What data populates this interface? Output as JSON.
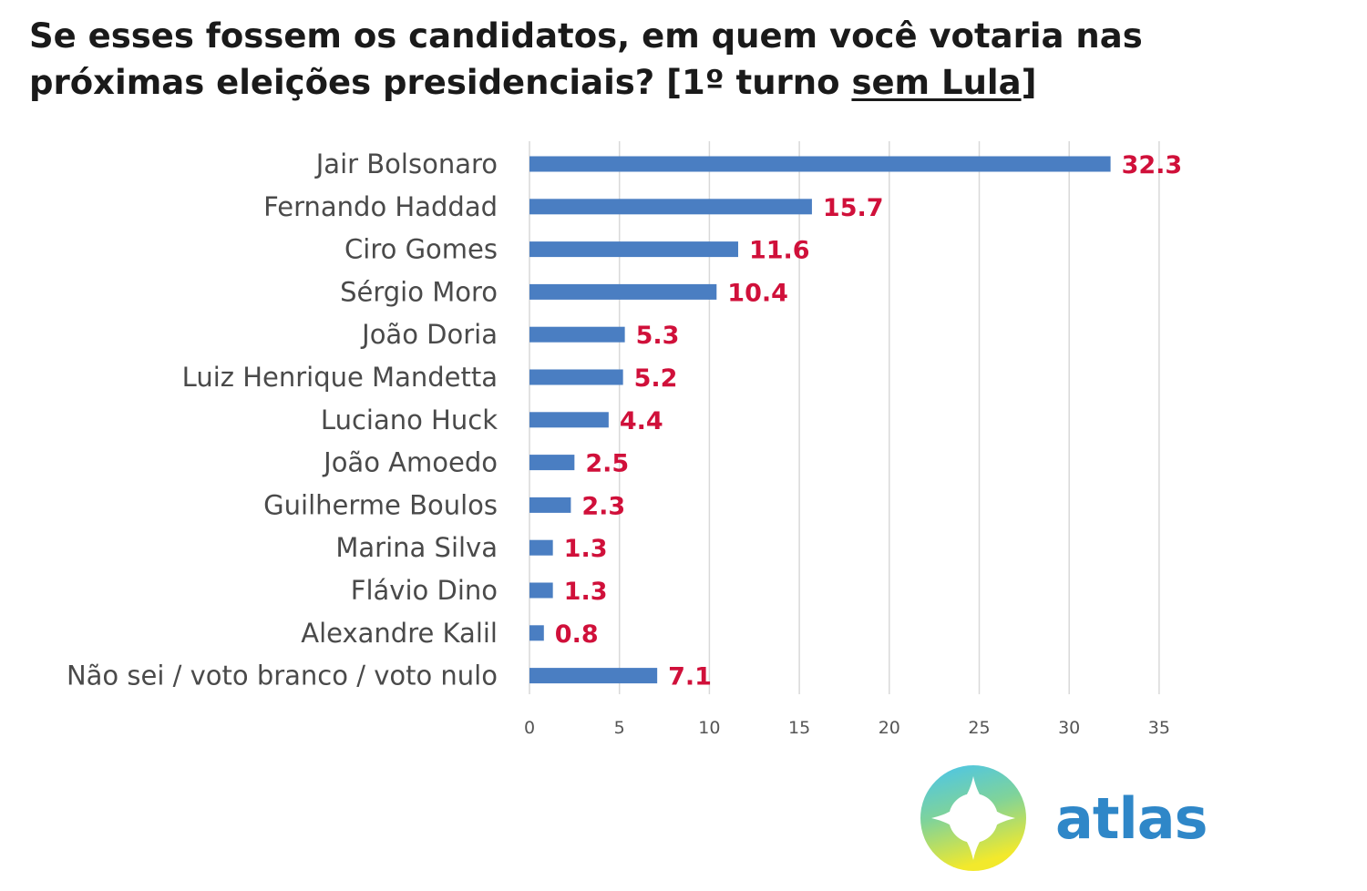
{
  "title": {
    "before": "Se esses fossem os candidatos, em quem você votaria nas próximas eleições presidenciais? [1º turno ",
    "underlined": "sem Lula",
    "after": "]"
  },
  "chart_data": {
    "type": "bar",
    "orientation": "horizontal",
    "categories": [
      "Jair Bolsonaro",
      "Fernando Haddad",
      "Ciro Gomes",
      "Sérgio Moro",
      "João Doria",
      "Luiz Henrique Mandetta",
      "Luciano Huck",
      "João Amoedo",
      "Guilherme Boulos",
      "Marina Silva",
      "Flávio Dino",
      "Alexandre Kalil",
      "Não sei / voto branco / voto nulo"
    ],
    "values": [
      32.3,
      15.7,
      11.6,
      10.4,
      5.3,
      5.2,
      4.4,
      2.5,
      2.3,
      1.3,
      1.3,
      0.8,
      7.1
    ],
    "value_labels": [
      "32.3",
      "15.7",
      "11.6",
      "10.4",
      "5.3",
      "5.2",
      "4.4",
      "2.5",
      "2.3",
      "1.3",
      "1.3",
      "0.8",
      "7.1"
    ],
    "xlim": [
      0,
      35
    ],
    "xticks": [
      0,
      5,
      10,
      15,
      20,
      25,
      30,
      35
    ],
    "grid": true,
    "legend": "none",
    "colors": {
      "bar": "#4a7ec2",
      "value_label": "#d0103a",
      "grid": "#d9d9d9"
    }
  },
  "logo": {
    "text": "atlas",
    "colors": {
      "text": "#2f87c8",
      "ring_top": "#48c4ee",
      "ring_bottom": "#f2e92c"
    }
  }
}
